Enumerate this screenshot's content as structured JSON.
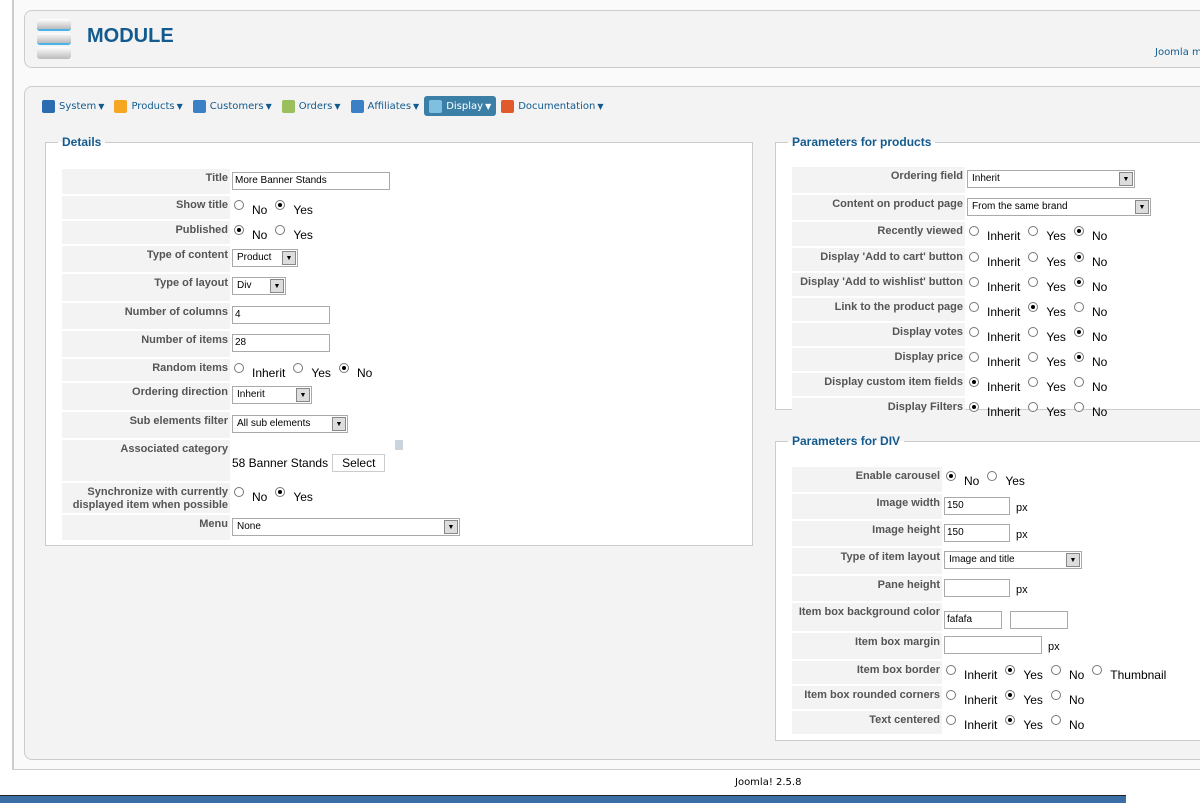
{
  "header": {
    "title": "MODULE",
    "right_text": "Joomla m"
  },
  "menu": [
    {
      "label": "System",
      "icon": "wrench-icon",
      "color": "#2b6cb0"
    },
    {
      "label": "Products",
      "icon": "box-icon",
      "color": "#f5a623"
    },
    {
      "label": "Customers",
      "icon": "user-icon",
      "color": "#3b7fc4"
    },
    {
      "label": "Orders",
      "icon": "document-icon",
      "color": "#9bbf5a"
    },
    {
      "label": "Affiliates",
      "icon": "users-icon",
      "color": "#3b7fc4"
    },
    {
      "label": "Display",
      "icon": "window-icon",
      "color": "#7fc0e0",
      "active": true
    },
    {
      "label": "Documentation",
      "icon": "lifebuoy-icon",
      "color": "#e05a2b"
    }
  ],
  "details": {
    "legend": "Details",
    "rows": [
      {
        "label": "Title",
        "type": "text",
        "value": "More Banner Stands"
      },
      {
        "label": "Show title",
        "type": "radio",
        "options": [
          "No",
          "Yes"
        ],
        "selected": "Yes"
      },
      {
        "label": "Published",
        "type": "radio",
        "options": [
          "No",
          "Yes"
        ],
        "selected": "No"
      },
      {
        "label": "Type of content",
        "type": "select",
        "value": "Product"
      },
      {
        "label": "Type of layout",
        "type": "select",
        "value": "Div"
      },
      {
        "label": "Number of columns",
        "type": "text",
        "value": "4"
      },
      {
        "label": "Number of items",
        "type": "text",
        "value": "28"
      },
      {
        "label": "Random items",
        "type": "radio",
        "options": [
          "Inherit",
          "Yes",
          "No"
        ],
        "selected": "No"
      },
      {
        "label": "Ordering direction",
        "type": "select",
        "value": "Inherit"
      },
      {
        "label": "Sub elements filter",
        "type": "select",
        "value": "All sub elements"
      },
      {
        "label": "Associated category",
        "type": "category",
        "value": "58 Banner Stands",
        "button": "Select"
      },
      {
        "label": "Synchronize with currently displayed item when possible",
        "type": "radio",
        "options": [
          "No",
          "Yes"
        ],
        "selected": "Yes"
      },
      {
        "label": "Menu",
        "type": "select",
        "value": "None"
      }
    ]
  },
  "products": {
    "legend": "Parameters for products",
    "rows": [
      {
        "label": "Ordering field",
        "type": "select",
        "value": "Inherit"
      },
      {
        "label": "Content on product page",
        "type": "select",
        "value": "From the same brand"
      },
      {
        "label": "Recently viewed",
        "type": "radio",
        "options": [
          "Inherit",
          "Yes",
          "No"
        ],
        "selected": "No"
      },
      {
        "label": "Display 'Add to cart' button",
        "type": "radio",
        "options": [
          "Inherit",
          "Yes",
          "No"
        ],
        "selected": "No"
      },
      {
        "label": "Display 'Add to wishlist' button",
        "type": "radio",
        "options": [
          "Inherit",
          "Yes",
          "No"
        ],
        "selected": "No"
      },
      {
        "label": "Link to the product page",
        "type": "radio",
        "options": [
          "Inherit",
          "Yes",
          "No"
        ],
        "selected": "Yes"
      },
      {
        "label": "Display votes",
        "type": "radio",
        "options": [
          "Inherit",
          "Yes",
          "No"
        ],
        "selected": "No"
      },
      {
        "label": "Display price",
        "type": "radio",
        "options": [
          "Inherit",
          "Yes",
          "No"
        ],
        "selected": "No"
      },
      {
        "label": "Display custom item fields",
        "type": "radio",
        "options": [
          "Inherit",
          "Yes",
          "No"
        ],
        "selected": "Inherit"
      },
      {
        "label": "Display Filters",
        "type": "radio",
        "options": [
          "Inherit",
          "Yes",
          "No"
        ],
        "selected": "Inherit"
      }
    ]
  },
  "div": {
    "legend": "Parameters for DIV",
    "rows": [
      {
        "label": "Enable carousel",
        "type": "radio",
        "options": [
          "No",
          "Yes"
        ],
        "selected": "No"
      },
      {
        "label": "Image width",
        "type": "text",
        "value": "150",
        "suffix": "px"
      },
      {
        "label": "Image height",
        "type": "text",
        "value": "150",
        "suffix": "px"
      },
      {
        "label": "Type of item layout",
        "type": "select",
        "value": "Image and title"
      },
      {
        "label": "Pane height",
        "type": "text",
        "value": "",
        "suffix": "px"
      },
      {
        "label": "Item box background color",
        "type": "color",
        "value": "fafafa"
      },
      {
        "label": "Item box margin",
        "type": "text",
        "value": "",
        "suffix": "px"
      },
      {
        "label": "Item box border",
        "type": "radio",
        "options": [
          "Inherit",
          "Yes",
          "No",
          "Thumbnail"
        ],
        "selected": "Yes"
      },
      {
        "label": "Item box rounded corners",
        "type": "radio",
        "options": [
          "Inherit",
          "Yes",
          "No"
        ],
        "selected": "Yes"
      },
      {
        "label": "Text centered",
        "type": "radio",
        "options": [
          "Inherit",
          "Yes",
          "No"
        ],
        "selected": "Yes"
      }
    ]
  },
  "footer": {
    "version": "Joomla! 2.5.8"
  }
}
